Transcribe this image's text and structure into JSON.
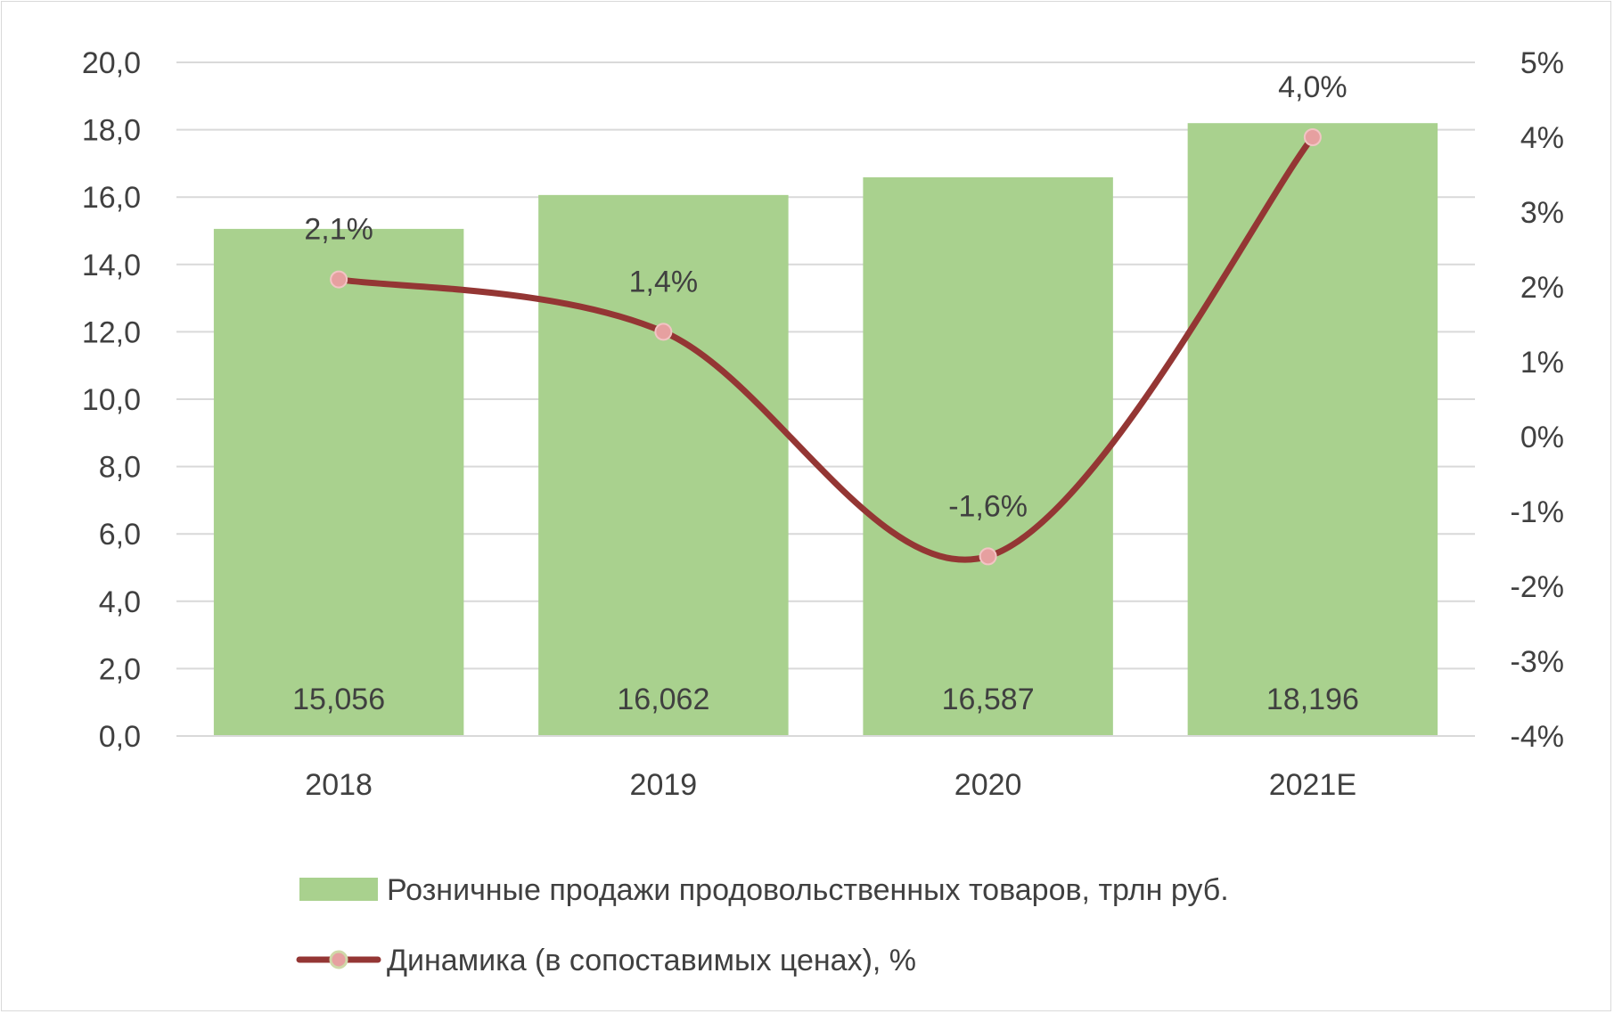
{
  "chart_data": {
    "type": "bar",
    "categories": [
      "2018",
      "2019",
      "2020",
      "2021E"
    ],
    "title": "",
    "y_left": {
      "range": [
        0,
        20
      ],
      "ticks": [
        "0,0",
        "2,0",
        "4,0",
        "6,0",
        "8,0",
        "10,0",
        "12,0",
        "14,0",
        "16,0",
        "18,0",
        "20,0"
      ]
    },
    "y_right": {
      "range": [
        -4,
        5
      ],
      "ticks": [
        "-4%",
        "-3%",
        "-2%",
        "-1%",
        "0%",
        "1%",
        "2%",
        "3%",
        "4%",
        "5%"
      ]
    },
    "grid": true,
    "legend_position": "bottom",
    "series": [
      {
        "name": "Розничные продажи продовольственных товаров, трлн руб.",
        "type": "bar",
        "axis": "left",
        "color": "#a9d18e",
        "values": [
          15.056,
          16.062,
          16.587,
          18.196
        ],
        "labels": [
          "15,056",
          "16,062",
          "16,587",
          "18,196"
        ]
      },
      {
        "name": "Динамика (в сопоставимых ценах), %",
        "type": "line",
        "axis": "right",
        "color": "#943634",
        "marker_color": "#e6a0a0",
        "smooth": true,
        "values": [
          2.1,
          1.4,
          -1.6,
          4.0
        ],
        "labels": [
          "2,1%",
          "1,4%",
          "-1,6%",
          "4,0%"
        ]
      }
    ]
  }
}
